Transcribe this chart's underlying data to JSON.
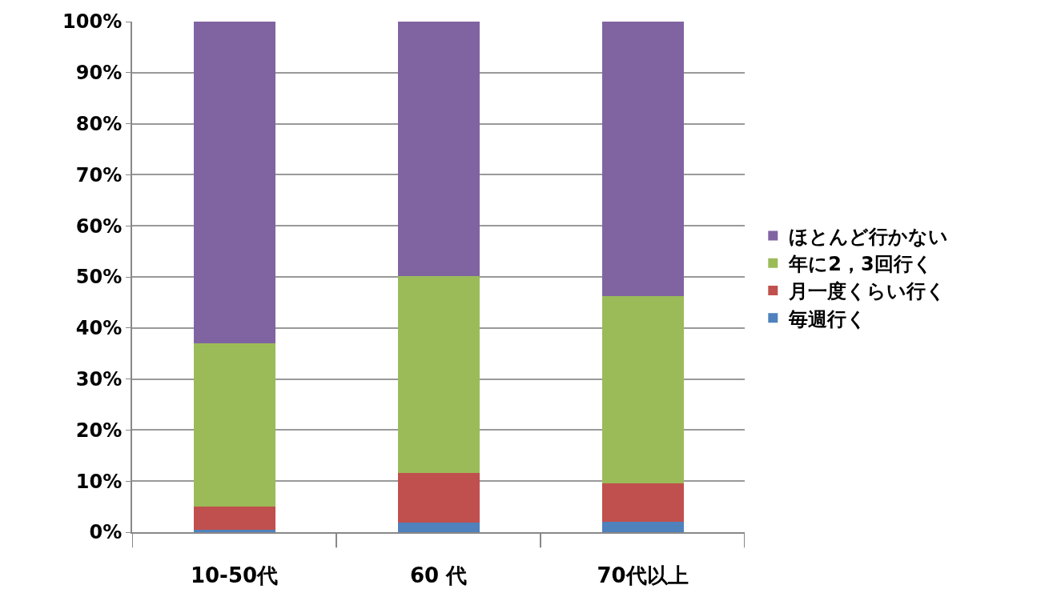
{
  "chart_data": {
    "type": "bar",
    "stacked": true,
    "categories": [
      "10-50代",
      "60 代",
      "70代以上"
    ],
    "series": [
      {
        "name": "毎週行く",
        "color": "#4f81bd",
        "values": [
          0.5,
          1.9,
          2.1
        ]
      },
      {
        "name": "月一度くらい行く",
        "color": "#c0504d",
        "values": [
          4.5,
          9.7,
          7.5
        ]
      },
      {
        "name": "年に2，3回行く",
        "color": "#9bbb59",
        "values": [
          32.0,
          38.6,
          36.7
        ]
      },
      {
        "name": "ほとんど行かない",
        "color": "#8064a2",
        "values": [
          63.0,
          49.8,
          53.7
        ]
      }
    ],
    "ylim": [
      0,
      100
    ],
    "yticks": [
      {
        "value": 0,
        "label": "0%"
      },
      {
        "value": 10,
        "label": "10%"
      },
      {
        "value": 20,
        "label": "20%"
      },
      {
        "value": 30,
        "label": "30%"
      },
      {
        "value": 40,
        "label": "40%"
      },
      {
        "value": 50,
        "label": "50%"
      },
      {
        "value": 60,
        "label": "60%"
      },
      {
        "value": 70,
        "label": "70%"
      },
      {
        "value": 80,
        "label": "80%"
      },
      {
        "value": 90,
        "label": "90%"
      },
      {
        "value": 100,
        "label": "100%"
      }
    ],
    "grid": "y",
    "legend": "right"
  }
}
